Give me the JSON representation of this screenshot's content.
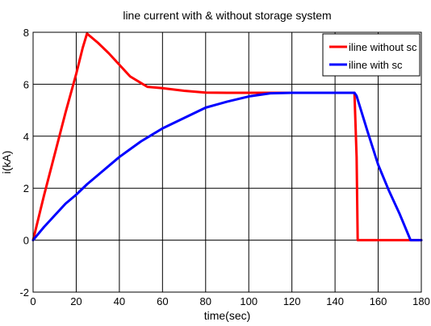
{
  "chart_data": {
    "type": "line",
    "title": "line current with & without storage system",
    "xlabel": "time(sec)",
    "ylabel": "i(kA)",
    "xlim": [
      0,
      180
    ],
    "ylim": [
      -2,
      8
    ],
    "xticks": [
      0,
      20,
      40,
      60,
      80,
      100,
      120,
      140,
      160,
      180
    ],
    "yticks": [
      -2,
      0,
      2,
      4,
      6,
      8
    ],
    "grid": true,
    "legend_position": "top-right",
    "series": [
      {
        "name": "iline without sc",
        "color": "#ff0000",
        "x": [
          0,
          5,
          10,
          15,
          20,
          23,
          25,
          30,
          35,
          40,
          45,
          50,
          53,
          60,
          70,
          80,
          90,
          100,
          110,
          120,
          130,
          140,
          149,
          150,
          150.5,
          160,
          170,
          180
        ],
        "y": [
          0,
          1.7,
          3.3,
          4.9,
          6.4,
          7.4,
          7.95,
          7.6,
          7.2,
          6.75,
          6.3,
          6.05,
          5.9,
          5.85,
          5.75,
          5.68,
          5.67,
          5.67,
          5.67,
          5.67,
          5.67,
          5.67,
          5.67,
          3.2,
          0,
          0,
          0,
          0
        ]
      },
      {
        "name": "iline with sc",
        "color": "#0000ff",
        "x": [
          0,
          5,
          10,
          15,
          20,
          25,
          30,
          35,
          40,
          45,
          50,
          55,
          60,
          70,
          80,
          90,
          100,
          110,
          120,
          130,
          140,
          149,
          150,
          155,
          160,
          165,
          170,
          175,
          180
        ],
        "y": [
          0,
          0.5,
          0.95,
          1.4,
          1.75,
          2.15,
          2.5,
          2.85,
          3.2,
          3.5,
          3.8,
          4.05,
          4.3,
          4.7,
          5.1,
          5.33,
          5.53,
          5.65,
          5.67,
          5.67,
          5.67,
          5.67,
          5.55,
          4.2,
          2.9,
          1.9,
          1.0,
          0,
          0
        ]
      }
    ]
  }
}
